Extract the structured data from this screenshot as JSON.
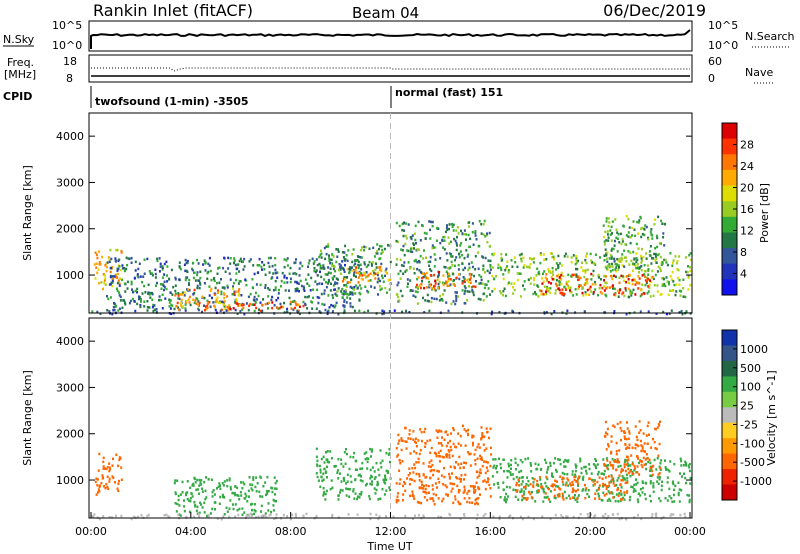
{
  "header": {
    "station": "Rankin Inlet (fitACF)",
    "beam": "Beam 04",
    "date": "06/Dec/2019"
  },
  "nsky_panel": {
    "left_label": "N.Sky",
    "right_label": "N.Search",
    "left_ticks": [
      "10^5",
      "10^0"
    ],
    "right_ticks": [
      "10^5",
      "10^0"
    ]
  },
  "freq_panel": {
    "left_label_1": "Freq.",
    "left_label_2": "[MHz]",
    "right_label": "Nave",
    "left_ticks": [
      "18",
      "8"
    ],
    "right_ticks": [
      "60",
      "0"
    ]
  },
  "cpid": {
    "label": "CPID",
    "segments": [
      {
        "name": "twofsound (1-min) -3505",
        "start_hour": 0
      },
      {
        "name": "normal (fast) 151",
        "start_hour": 12
      }
    ]
  },
  "time_axis": {
    "label": "Time UT",
    "ticks": [
      "00:00",
      "04:00",
      "08:00",
      "12:00",
      "16:00",
      "20:00",
      "00:00"
    ]
  },
  "chart_data": [
    {
      "type": "heatmap",
      "name": "power",
      "ylabel": "Slant Range [km]",
      "y_ticks": [
        1000,
        2000,
        3000,
        4000
      ],
      "ylim": [
        180,
        4500
      ],
      "xlim_hours": [
        0,
        24
      ],
      "colorbar_label": "Power [dB]",
      "colorbar_ticks": [
        "28",
        "24",
        "20",
        "16",
        "12",
        "8",
        "4"
      ],
      "colorbar_colors": [
        "#dd0000",
        "#ff3300",
        "#ff7700",
        "#ffaa00",
        "#dddd00",
        "#99cc22",
        "#33aa33",
        "#227744",
        "#335599",
        "#2233bb",
        "#1111ee"
      ],
      "scatter_regions": [
        {
          "t0": 0.1,
          "t1": 1.2,
          "r0": 700,
          "r1": 1600,
          "level": 20
        },
        {
          "t0": 0.6,
          "t1": 10.8,
          "r0": 250,
          "r1": 1400,
          "level": 8
        },
        {
          "t0": 3.3,
          "t1": 6.0,
          "r0": 250,
          "r1": 750,
          "level": 22
        },
        {
          "t0": 5.5,
          "t1": 8.5,
          "r0": 250,
          "r1": 450,
          "level": 26
        },
        {
          "t0": 9.0,
          "t1": 12.0,
          "r0": 600,
          "r1": 1700,
          "level": 10
        },
        {
          "t0": 10.0,
          "t1": 12.0,
          "r0": 850,
          "r1": 1200,
          "level": 22
        },
        {
          "t0": 12.2,
          "t1": 16.0,
          "r0": 400,
          "r1": 2200,
          "level": 10
        },
        {
          "t0": 13.0,
          "t1": 15.5,
          "r0": 700,
          "r1": 1100,
          "level": 24
        },
        {
          "t0": 16.0,
          "t1": 24.0,
          "r0": 550,
          "r1": 1500,
          "level": 14
        },
        {
          "t0": 18.0,
          "t1": 22.5,
          "r0": 600,
          "r1": 1050,
          "level": 26
        },
        {
          "t0": 20.5,
          "t1": 23.0,
          "r0": 1100,
          "r1": 2300,
          "level": 12
        },
        {
          "t0": 0.0,
          "t1": 24.0,
          "r0": 180,
          "r1": 260,
          "level": 6
        }
      ]
    },
    {
      "type": "heatmap",
      "name": "velocity",
      "ylabel": "Slant Range [km]",
      "y_ticks": [
        1000,
        2000,
        3000,
        4000
      ],
      "ylim": [
        180,
        4500
      ],
      "xlim_hours": [
        0,
        24
      ],
      "colorbar_label": "Velocity [m s^-1]",
      "colorbar_ticks": [
        "1000",
        "500",
        "100",
        "25",
        "-25",
        "-100",
        "-500",
        "-1000"
      ],
      "colorbar_colors": [
        "#1133aa",
        "#335588",
        "#226644",
        "#33aa44",
        "#77cc44",
        "#bbbbbb",
        "#ffcc22",
        "#ff9900",
        "#ff6600",
        "#ee2200",
        "#cc0000"
      ],
      "scatter_regions": [
        {
          "t0": 0.1,
          "t1": 1.2,
          "r0": 700,
          "r1": 1600,
          "level": -150
        },
        {
          "t0": 3.3,
          "t1": 7.5,
          "r0": 250,
          "r1": 1100,
          "level": 250
        },
        {
          "t0": 9.0,
          "t1": 12.0,
          "r0": 600,
          "r1": 1700,
          "level": 200
        },
        {
          "t0": 12.2,
          "t1": 16.0,
          "r0": 500,
          "r1": 2200,
          "level": -150
        },
        {
          "t0": 16.0,
          "t1": 24.0,
          "r0": 550,
          "r1": 1500,
          "level": 150
        },
        {
          "t0": 17.0,
          "t1": 21.5,
          "r0": 600,
          "r1": 1100,
          "level": -200
        },
        {
          "t0": 20.5,
          "t1": 22.8,
          "r0": 1100,
          "r1": 2300,
          "level": -250
        },
        {
          "t0": 0.0,
          "t1": 24.0,
          "r0": 180,
          "r1": 300,
          "level": 0
        }
      ]
    }
  ]
}
